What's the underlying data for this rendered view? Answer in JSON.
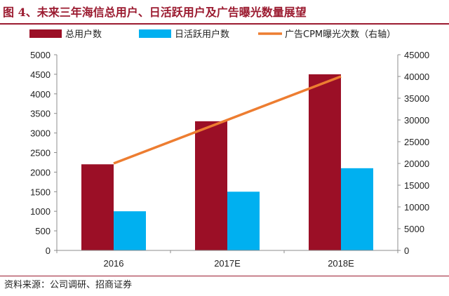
{
  "figure": {
    "title": "图 4、未来三年海信总用户、日活跃用户及广告曝光数量展望",
    "source": "资料来源：公司调研、招商证券"
  },
  "colors": {
    "title": "#9b1b30",
    "total_users": "#9b0f26",
    "daily_active": "#00b0f0",
    "cpm": "#ed7d31"
  },
  "chart_data": {
    "type": "bar",
    "categories": [
      "2016",
      "2017E",
      "2018E"
    ],
    "series": [
      {
        "name": "总用户数",
        "type": "bar",
        "axis": "left",
        "color": "#9b0f26",
        "values": [
          2200,
          3300,
          4500
        ]
      },
      {
        "name": "日活跃用户数",
        "type": "bar",
        "axis": "left",
        "color": "#00b0f0",
        "values": [
          1000,
          1500,
          2100
        ]
      },
      {
        "name": "广告CPM曝光次数（右轴）",
        "type": "line",
        "axis": "right",
        "color": "#ed7d31",
        "values": [
          20000,
          30000,
          40000
        ]
      }
    ],
    "y_left": {
      "min": 0,
      "max": 5000,
      "step": 500,
      "ticks": [
        "0",
        "500",
        "1000",
        "1500",
        "2000",
        "2500",
        "3000",
        "3500",
        "4000",
        "4500",
        "5000"
      ]
    },
    "y_right": {
      "min": 0,
      "max": 45000,
      "step": 5000,
      "ticks": [
        "0",
        "5000",
        "10000",
        "15000",
        "20000",
        "25000",
        "30000",
        "35000",
        "40000",
        "45000"
      ]
    },
    "grid": false,
    "legend_position": "top"
  }
}
